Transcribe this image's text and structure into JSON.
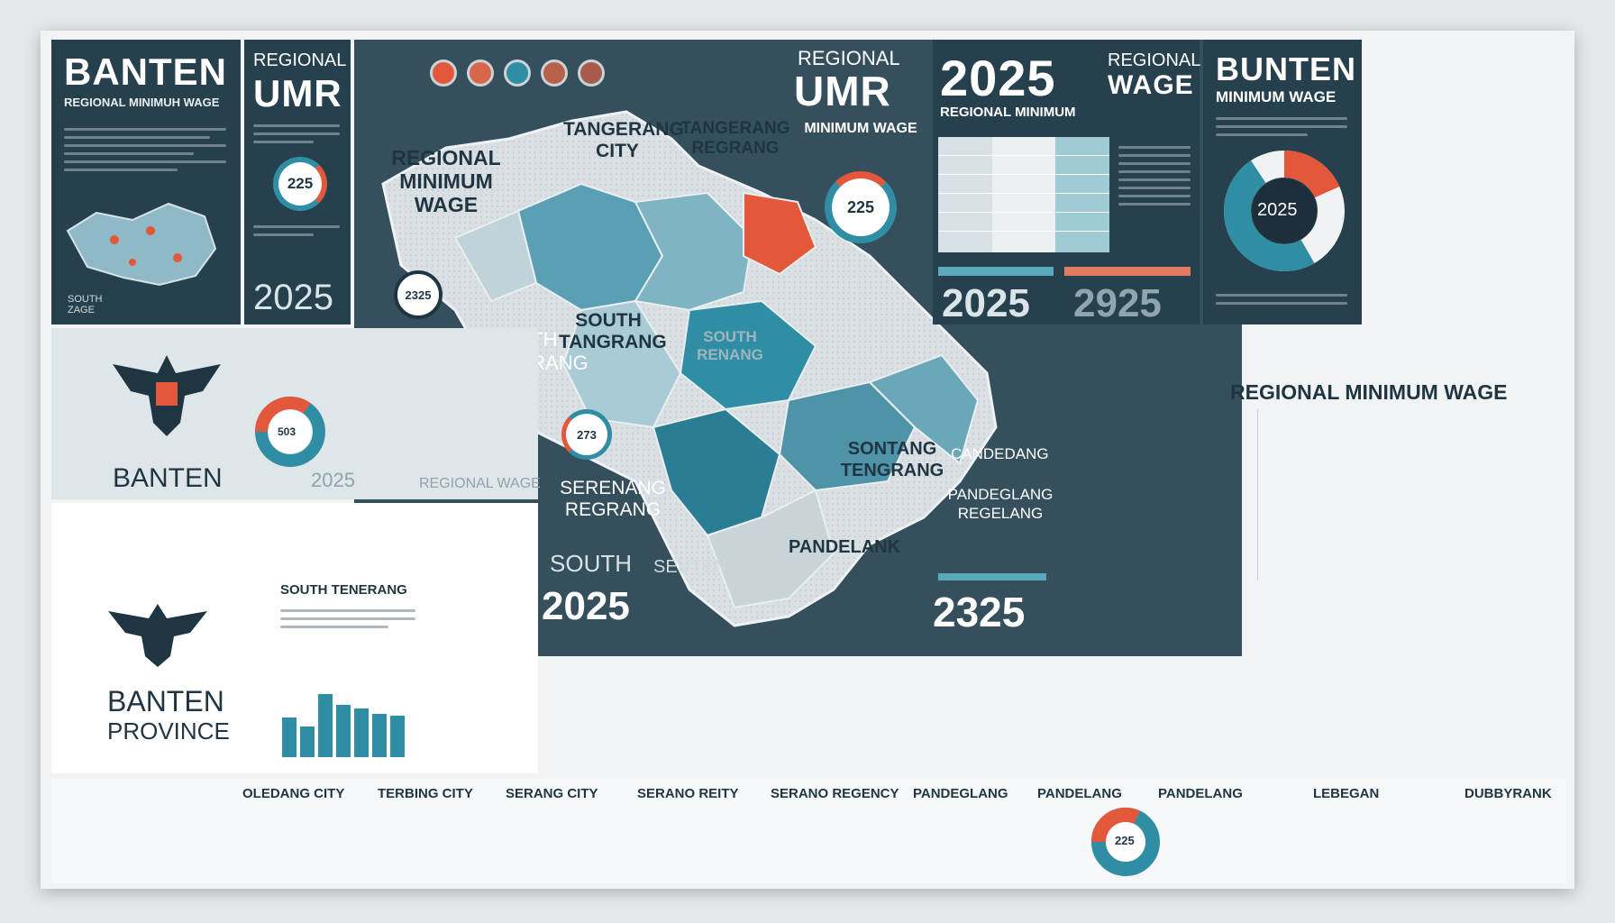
{
  "top_left": {
    "title": "BANTEN",
    "subtitle": "REGIONAL MINIMUH WAGE",
    "badge": "225",
    "year": "2025",
    "map_label": "SOUTH ZAGE"
  },
  "umr_block": {
    "line1": "REGIONAL",
    "line2": "UMR"
  },
  "center_header": {
    "line1": "REGIONAL",
    "line2": "UMR"
  },
  "year_header": {
    "year": "2025",
    "line1": "REGIONAL",
    "line2": "WAGE",
    "sub": "REGIONAL MINIMUM"
  },
  "right_top": {
    "title": "BUNTEN",
    "subtitle": "MINIMUM WAGE",
    "donut_label": "2025"
  },
  "map": {
    "labels": {
      "regional_minimum_wage": "REGIONAL MINIMUM WAGE",
      "tangerang_city": "TANGERANG CITY",
      "tangerang_regrang": "TANGERANG REGRANG",
      "minimum_wage": "MINIMUM WAGE",
      "south_tangerang": "SOUTH TANGERANG",
      "south_tangrang": "SOUTH TANGRANG",
      "south_renang": "SOUTH RENANG",
      "sontang_tengrang": "SONTANG TENGRANG",
      "candedang": "CANDEDANG",
      "serang_regrang": "SERENANG REGRANG",
      "pandeglang_regelang": "PANDEGLANG REGELANG",
      "pandelank": "PANDELANK"
    },
    "badges": {
      "b1": "225",
      "b2": "225",
      "b3": "2325",
      "b4": "273"
    },
    "bottom": {
      "south": "SOUTH",
      "year1": "2025",
      "seuten": "SEUTEN",
      "year2": "2325"
    }
  },
  "center_table_years": {
    "y1": "2025",
    "y2": "2925"
  },
  "bar_chart_title": "REGIONAL MINIMUM WAGE",
  "left_mid": {
    "brand": "BANTEN",
    "year": "2025",
    "label": "REGIONAL WAGE",
    "donut": "503"
  },
  "left_bottom": {
    "brand": "BANTEN",
    "province": "PROVINCE",
    "chart_title": "SOUTH TENERANG"
  },
  "bottom_strip": [
    "OLEDANG CITY",
    "TERBING CITY",
    "SERANG CITY",
    "SERANO REITY",
    "SERANO REGENCY",
    "PANDEGLANG",
    "PANDELANG",
    "PANDELANG",
    "LEBEGAN",
    "DUBBYRANK"
  ],
  "bottom_donut": "225",
  "colors": {
    "dark": "#27404e",
    "teal": "#2f8ea3",
    "orange": "#e3573a",
    "light": "#dfe6ea"
  }
}
